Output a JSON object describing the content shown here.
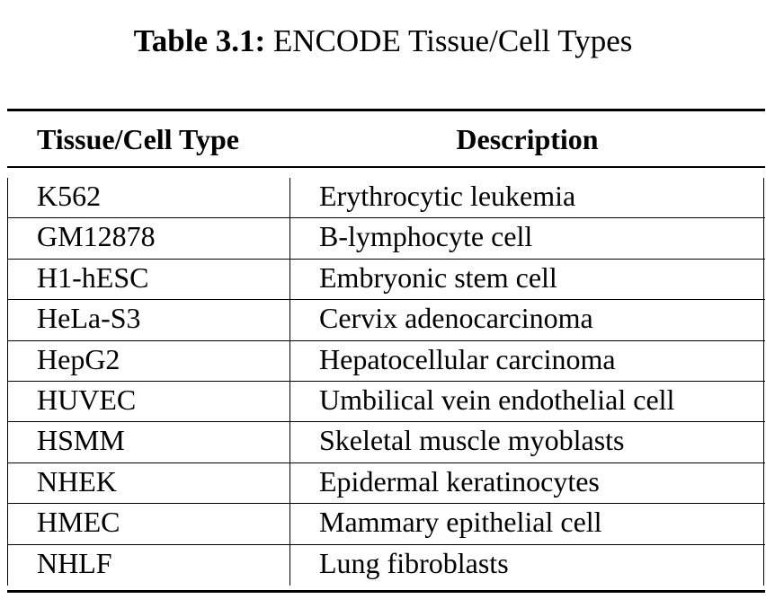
{
  "caption": {
    "label": "Table 3.1:",
    "text": "ENCODE Tissue/Cell Types"
  },
  "table": {
    "headers": [
      "Tissue/Cell Type",
      "Description"
    ],
    "rows": [
      {
        "type": "K562",
        "description": "Erythrocytic leukemia"
      },
      {
        "type": "GM12878",
        "description": "B-lymphocyte cell"
      },
      {
        "type": "H1-hESC",
        "description": "Embryonic stem cell"
      },
      {
        "type": "HeLa-S3",
        "description": "Cervix adenocarcinoma"
      },
      {
        "type": "HepG2",
        "description": "Hepatocellular carcinoma"
      },
      {
        "type": "HUVEC",
        "description": "Umbilical vein endothelial cell"
      },
      {
        "type": "HSMM",
        "description": "Skeletal muscle myoblasts"
      },
      {
        "type": "NHEK",
        "description": "Epidermal keratinocytes"
      },
      {
        "type": "HMEC",
        "description": "Mammary epithelial cell"
      },
      {
        "type": "NHLF",
        "description": "Lung fibroblasts"
      }
    ]
  }
}
